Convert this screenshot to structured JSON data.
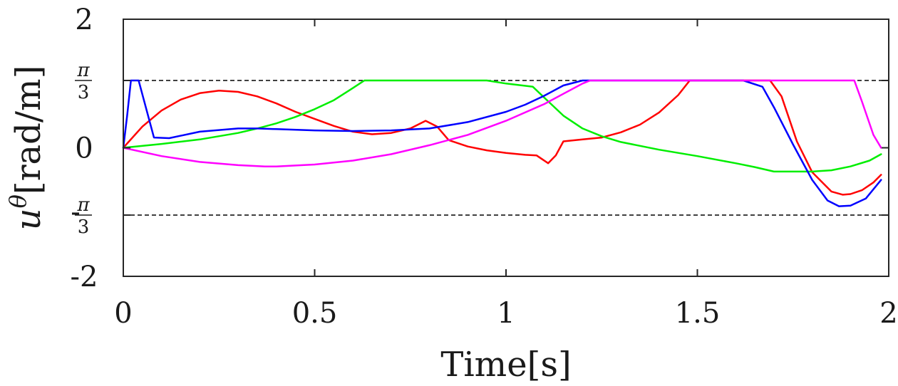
{
  "chart_data": {
    "type": "line",
    "xlabel": "Time[s]",
    "ylabel": {
      "base": "u",
      "superscript": "θ",
      "unit": "[rad/m]"
    },
    "xlim": [
      0,
      2
    ],
    "ylim": [
      -2,
      2
    ],
    "x_ticks": [
      {
        "value": 0,
        "label": "0"
      },
      {
        "value": 0.5,
        "label": "0.5"
      },
      {
        "value": 1,
        "label": "1"
      },
      {
        "value": 1.5,
        "label": "1.5"
      },
      {
        "value": 2,
        "label": "2"
      }
    ],
    "y_ticks": [
      {
        "value": 2,
        "label": "2"
      },
      {
        "value": 1.0472,
        "label": "π/3",
        "numerator": "π",
        "denominator": "3",
        "prefix": ""
      },
      {
        "value": 0,
        "label": "0"
      },
      {
        "value": -1.0472,
        "label": "-π/3",
        "numerator": "π",
        "denominator": "3",
        "prefix": "-"
      },
      {
        "value": -2,
        "label": "-2"
      }
    ],
    "grid": false,
    "reference_lines": [
      {
        "y": 1.0472,
        "style": "dashed",
        "color": "#000000"
      },
      {
        "y": -1.0472,
        "style": "dashed",
        "color": "#000000"
      }
    ],
    "series": [
      {
        "color": "#ff0000",
        "points": [
          [
            0,
            0
          ],
          [
            0.05,
            0.33
          ],
          [
            0.1,
            0.58
          ],
          [
            0.15,
            0.75
          ],
          [
            0.2,
            0.85
          ],
          [
            0.25,
            0.89
          ],
          [
            0.3,
            0.87
          ],
          [
            0.35,
            0.8
          ],
          [
            0.4,
            0.69
          ],
          [
            0.45,
            0.56
          ],
          [
            0.5,
            0.45
          ],
          [
            0.55,
            0.34
          ],
          [
            0.6,
            0.25
          ],
          [
            0.65,
            0.21
          ],
          [
            0.7,
            0.23
          ],
          [
            0.75,
            0.3
          ],
          [
            0.79,
            0.42
          ],
          [
            0.82,
            0.33
          ],
          [
            0.85,
            0.12
          ],
          [
            0.9,
            0.02
          ],
          [
            0.95,
            -0.04
          ],
          [
            1.0,
            -0.08
          ],
          [
            1.05,
            -0.11
          ],
          [
            1.08,
            -0.12
          ],
          [
            1.11,
            -0.24
          ],
          [
            1.13,
            -0.12
          ],
          [
            1.15,
            0.1
          ],
          [
            1.2,
            0.13
          ],
          [
            1.25,
            0.16
          ],
          [
            1.3,
            0.24
          ],
          [
            1.35,
            0.36
          ],
          [
            1.4,
            0.55
          ],
          [
            1.45,
            0.82
          ],
          [
            1.48,
            1.0472
          ],
          [
            1.69,
            1.0472
          ],
          [
            1.72,
            0.8
          ],
          [
            1.76,
            0.1
          ],
          [
            1.8,
            -0.38
          ],
          [
            1.85,
            -0.68
          ],
          [
            1.88,
            -0.73
          ],
          [
            1.9,
            -0.72
          ],
          [
            1.93,
            -0.66
          ],
          [
            1.96,
            -0.54
          ],
          [
            1.98,
            -0.42
          ]
        ]
      },
      {
        "color": "#00ee00",
        "points": [
          [
            0,
            0
          ],
          [
            0.1,
            0.06
          ],
          [
            0.2,
            0.13
          ],
          [
            0.3,
            0.23
          ],
          [
            0.35,
            0.3
          ],
          [
            0.4,
            0.38
          ],
          [
            0.45,
            0.48
          ],
          [
            0.5,
            0.6
          ],
          [
            0.55,
            0.74
          ],
          [
            0.6,
            0.93
          ],
          [
            0.63,
            1.0472
          ],
          [
            0.95,
            1.0472
          ],
          [
            1.0,
            1.0
          ],
          [
            1.07,
            0.95
          ],
          [
            1.1,
            0.78
          ],
          [
            1.15,
            0.5
          ],
          [
            1.2,
            0.3
          ],
          [
            1.25,
            0.18
          ],
          [
            1.3,
            0.09
          ],
          [
            1.4,
            -0.03
          ],
          [
            1.5,
            -0.13
          ],
          [
            1.6,
            -0.24
          ],
          [
            1.65,
            -0.3
          ],
          [
            1.7,
            -0.37
          ],
          [
            1.8,
            -0.37
          ],
          [
            1.85,
            -0.35
          ],
          [
            1.9,
            -0.29
          ],
          [
            1.95,
            -0.2
          ],
          [
            1.98,
            -0.1
          ]
        ]
      },
      {
        "color": "#0000ff",
        "points": [
          [
            0,
            0
          ],
          [
            0.01,
            0.5
          ],
          [
            0.02,
            1.0472
          ],
          [
            0.04,
            1.0472
          ],
          [
            0.08,
            0.16
          ],
          [
            0.12,
            0.15
          ],
          [
            0.2,
            0.25
          ],
          [
            0.3,
            0.3
          ],
          [
            0.35,
            0.3
          ],
          [
            0.4,
            0.29
          ],
          [
            0.5,
            0.27
          ],
          [
            0.6,
            0.26
          ],
          [
            0.7,
            0.27
          ],
          [
            0.8,
            0.3
          ],
          [
            0.9,
            0.4
          ],
          [
            1.0,
            0.56
          ],
          [
            1.05,
            0.67
          ],
          [
            1.1,
            0.81
          ],
          [
            1.15,
            0.97
          ],
          [
            1.2,
            1.0472
          ],
          [
            1.62,
            1.0472
          ],
          [
            1.67,
            0.95
          ],
          [
            1.7,
            0.63
          ],
          [
            1.75,
            0.05
          ],
          [
            1.8,
            -0.5
          ],
          [
            1.84,
            -0.82
          ],
          [
            1.87,
            -0.91
          ],
          [
            1.9,
            -0.9
          ],
          [
            1.94,
            -0.79
          ],
          [
            1.98,
            -0.5
          ]
        ]
      },
      {
        "color": "#ff00ff",
        "points": [
          [
            0,
            0
          ],
          [
            0.1,
            -0.13
          ],
          [
            0.2,
            -0.22
          ],
          [
            0.3,
            -0.27
          ],
          [
            0.37,
            -0.29
          ],
          [
            0.4,
            -0.29
          ],
          [
            0.5,
            -0.26
          ],
          [
            0.6,
            -0.2
          ],
          [
            0.7,
            -0.1
          ],
          [
            0.8,
            0.04
          ],
          [
            0.9,
            0.2
          ],
          [
            1.0,
            0.42
          ],
          [
            1.1,
            0.68
          ],
          [
            1.15,
            0.84
          ],
          [
            1.2,
            1.0
          ],
          [
            1.22,
            1.0472
          ],
          [
            1.91,
            1.0472
          ],
          [
            1.93,
            0.72
          ],
          [
            1.96,
            0.2
          ],
          [
            1.98,
            0.0
          ]
        ]
      }
    ]
  }
}
